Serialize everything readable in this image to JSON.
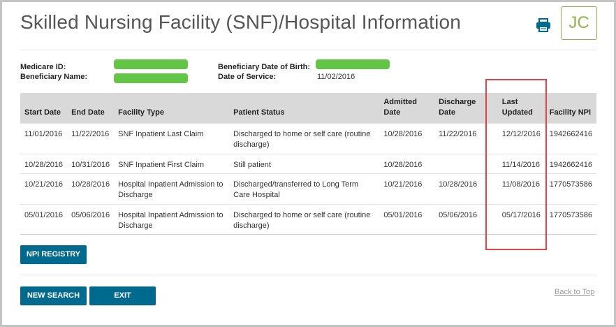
{
  "header": {
    "title": "Skilled Nursing Facility (SNF)/Hospital Information",
    "avatar_initials": "JC"
  },
  "beneficiary": {
    "medicare_id_label": "Medicare ID:",
    "name_label": "Beneficiary Name:",
    "dob_label": "Beneficiary Date of Birth:",
    "dos_label": "Date of Service:",
    "dos_value": "11/02/2016",
    "redaction_color": "#63c545"
  },
  "table": {
    "headers": {
      "start_date": "Start Date",
      "end_date": "End Date",
      "facility_type": "Facility Type",
      "patient_status": "Patient Status",
      "admitted_date": "Admitted Date",
      "discharge_date": "Discharge Date",
      "last_updated": "Last Updated",
      "facility_npi": "Facility NPI"
    },
    "rows": [
      {
        "start": "11/01/2016",
        "end": "11/22/2016",
        "type": "SNF Inpatient Last Claim",
        "status": "Discharged to home or self care (routine discharge)",
        "admitted": "10/28/2016",
        "discharge": "11/22/2016",
        "updated": "12/12/2016",
        "npi": "1942662416"
      },
      {
        "start": "10/28/2016",
        "end": "10/31/2016",
        "type": "SNF Inpatient First Claim",
        "status": "Still patient",
        "admitted": "10/28/2016",
        "discharge": "",
        "updated": "11/14/2016",
        "npi": "1942662416"
      },
      {
        "start": "10/21/2016",
        "end": "10/28/2016",
        "type": "Hospital Inpatient Admission to Discharge",
        "status": "Discharged/transferred to Long Term Care Hospital",
        "admitted": "10/21/2016",
        "discharge": "10/28/2016",
        "updated": "11/08/2016",
        "npi": "1770573586"
      },
      {
        "start": "05/01/2016",
        "end": "05/06/2016",
        "type": "Hospital Inpatient Admission to Discharge",
        "status": "Discharged to home or self care (routine discharge)",
        "admitted": "05/01/2016",
        "discharge": "05/06/2016",
        "updated": "05/17/2016",
        "npi": "1770573586"
      }
    ],
    "highlight_color": "#e0444b"
  },
  "buttons": {
    "npi_registry": "NPI REGISTRY",
    "new_search": "NEW SEARCH",
    "exit": "EXIT",
    "accent": "#006a8e"
  },
  "footer": {
    "back_to_top": "Back to Top"
  }
}
